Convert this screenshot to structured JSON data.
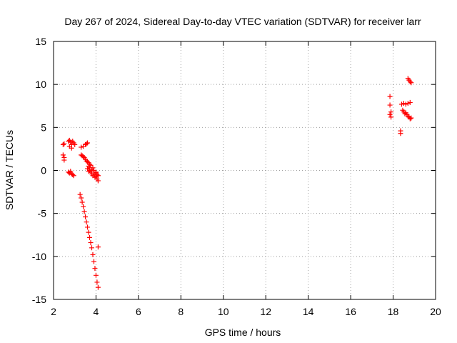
{
  "chart_data": {
    "type": "scatter",
    "title": "Day 267 of 2024, Sidereal Day-to-day VTEC variation (SDTVAR) for receiver larr",
    "xlabel": "GPS time / hours",
    "ylabel": "SDTVAR / TECUs",
    "xlim": [
      2,
      20
    ],
    "ylim": [
      -15,
      15
    ],
    "x_ticks": [
      2,
      4,
      6,
      8,
      10,
      12,
      14,
      16,
      18,
      20
    ],
    "y_ticks": [
      -15,
      -10,
      -5,
      0,
      5,
      10,
      15
    ],
    "x_tick_labels": [
      "2",
      "4",
      "6",
      "8",
      "10",
      "12",
      "14",
      "16",
      "18",
      "20"
    ],
    "y_tick_labels": [
      "-15",
      "-10",
      "-5",
      "0",
      "5",
      "10",
      "15"
    ],
    "grid": true,
    "marker": "+",
    "series": [
      {
        "name": "SDTVAR",
        "color": "#ff0000",
        "points": [
          [
            2.45,
            3.0
          ],
          [
            2.5,
            3.1
          ],
          [
            2.45,
            1.8
          ],
          [
            2.5,
            1.5
          ],
          [
            2.5,
            1.2
          ],
          [
            2.7,
            3.4
          ],
          [
            2.75,
            3.5
          ],
          [
            2.8,
            3.3
          ],
          [
            2.85,
            3.0
          ],
          [
            2.9,
            3.4
          ],
          [
            2.95,
            3.2
          ],
          [
            2.75,
            2.8
          ],
          [
            2.85,
            2.6
          ],
          [
            3.0,
            3.0
          ],
          [
            2.7,
            -0.2
          ],
          [
            2.75,
            -0.3
          ],
          [
            2.8,
            -0.1
          ],
          [
            2.85,
            -0.4
          ],
          [
            2.9,
            -0.5
          ],
          [
            2.95,
            -0.6
          ],
          [
            3.3,
            2.7
          ],
          [
            3.4,
            2.8
          ],
          [
            3.5,
            3.0
          ],
          [
            3.55,
            3.1
          ],
          [
            3.6,
            3.2
          ],
          [
            3.3,
            1.8
          ],
          [
            3.35,
            1.7
          ],
          [
            3.4,
            1.6
          ],
          [
            3.45,
            1.5
          ],
          [
            3.5,
            1.3
          ],
          [
            3.55,
            1.1
          ],
          [
            3.6,
            1.0
          ],
          [
            3.65,
            0.9
          ],
          [
            3.65,
            0.5
          ],
          [
            3.7,
            0.3
          ],
          [
            3.7,
            0.0
          ],
          [
            3.75,
            -0.2
          ],
          [
            3.75,
            0.6
          ],
          [
            3.8,
            0.1
          ],
          [
            3.8,
            -0.4
          ],
          [
            3.85,
            0.3
          ],
          [
            3.85,
            -0.6
          ],
          [
            3.9,
            -0.2
          ],
          [
            3.9,
            0.0
          ],
          [
            3.95,
            -0.5
          ],
          [
            3.95,
            -0.8
          ],
          [
            4.0,
            -0.3
          ],
          [
            4.0,
            -0.7
          ],
          [
            4.05,
            -0.5
          ],
          [
            4.05,
            -1.0
          ],
          [
            4.1,
            -0.6
          ],
          [
            4.1,
            -1.2
          ],
          [
            3.6,
            0.2
          ],
          [
            3.65,
            -0.1
          ],
          [
            3.7,
            0.7
          ],
          [
            4.0,
            -0.2
          ],
          [
            3.25,
            -2.8
          ],
          [
            3.3,
            -3.2
          ],
          [
            3.35,
            -3.7
          ],
          [
            3.4,
            -4.2
          ],
          [
            3.45,
            -4.8
          ],
          [
            3.5,
            -5.4
          ],
          [
            3.55,
            -6.0
          ],
          [
            3.6,
            -6.6
          ],
          [
            3.65,
            -7.2
          ],
          [
            3.7,
            -7.8
          ],
          [
            3.75,
            -8.4
          ],
          [
            3.8,
            -9.0
          ],
          [
            3.85,
            -9.8
          ],
          [
            3.9,
            -10.6
          ],
          [
            3.95,
            -11.4
          ],
          [
            4.0,
            -12.2
          ],
          [
            4.05,
            -13.0
          ],
          [
            4.1,
            -13.6
          ],
          [
            4.1,
            -8.9
          ],
          [
            17.85,
            8.6
          ],
          [
            17.85,
            7.6
          ],
          [
            17.9,
            6.8
          ],
          [
            17.85,
            6.5
          ],
          [
            17.9,
            6.2
          ],
          [
            18.35,
            4.6
          ],
          [
            18.35,
            4.3
          ],
          [
            18.4,
            7.7
          ],
          [
            18.5,
            7.8
          ],
          [
            18.6,
            7.7
          ],
          [
            18.7,
            7.8
          ],
          [
            18.8,
            7.9
          ],
          [
            18.45,
            7.0
          ],
          [
            18.5,
            6.8
          ],
          [
            18.55,
            6.6
          ],
          [
            18.6,
            6.7
          ],
          [
            18.65,
            6.5
          ],
          [
            18.7,
            6.3
          ],
          [
            18.75,
            6.2
          ],
          [
            18.8,
            6.0
          ],
          [
            18.85,
            6.1
          ],
          [
            18.7,
            10.7
          ],
          [
            18.75,
            10.5
          ],
          [
            18.8,
            10.3
          ],
          [
            18.85,
            10.2
          ]
        ]
      }
    ]
  }
}
